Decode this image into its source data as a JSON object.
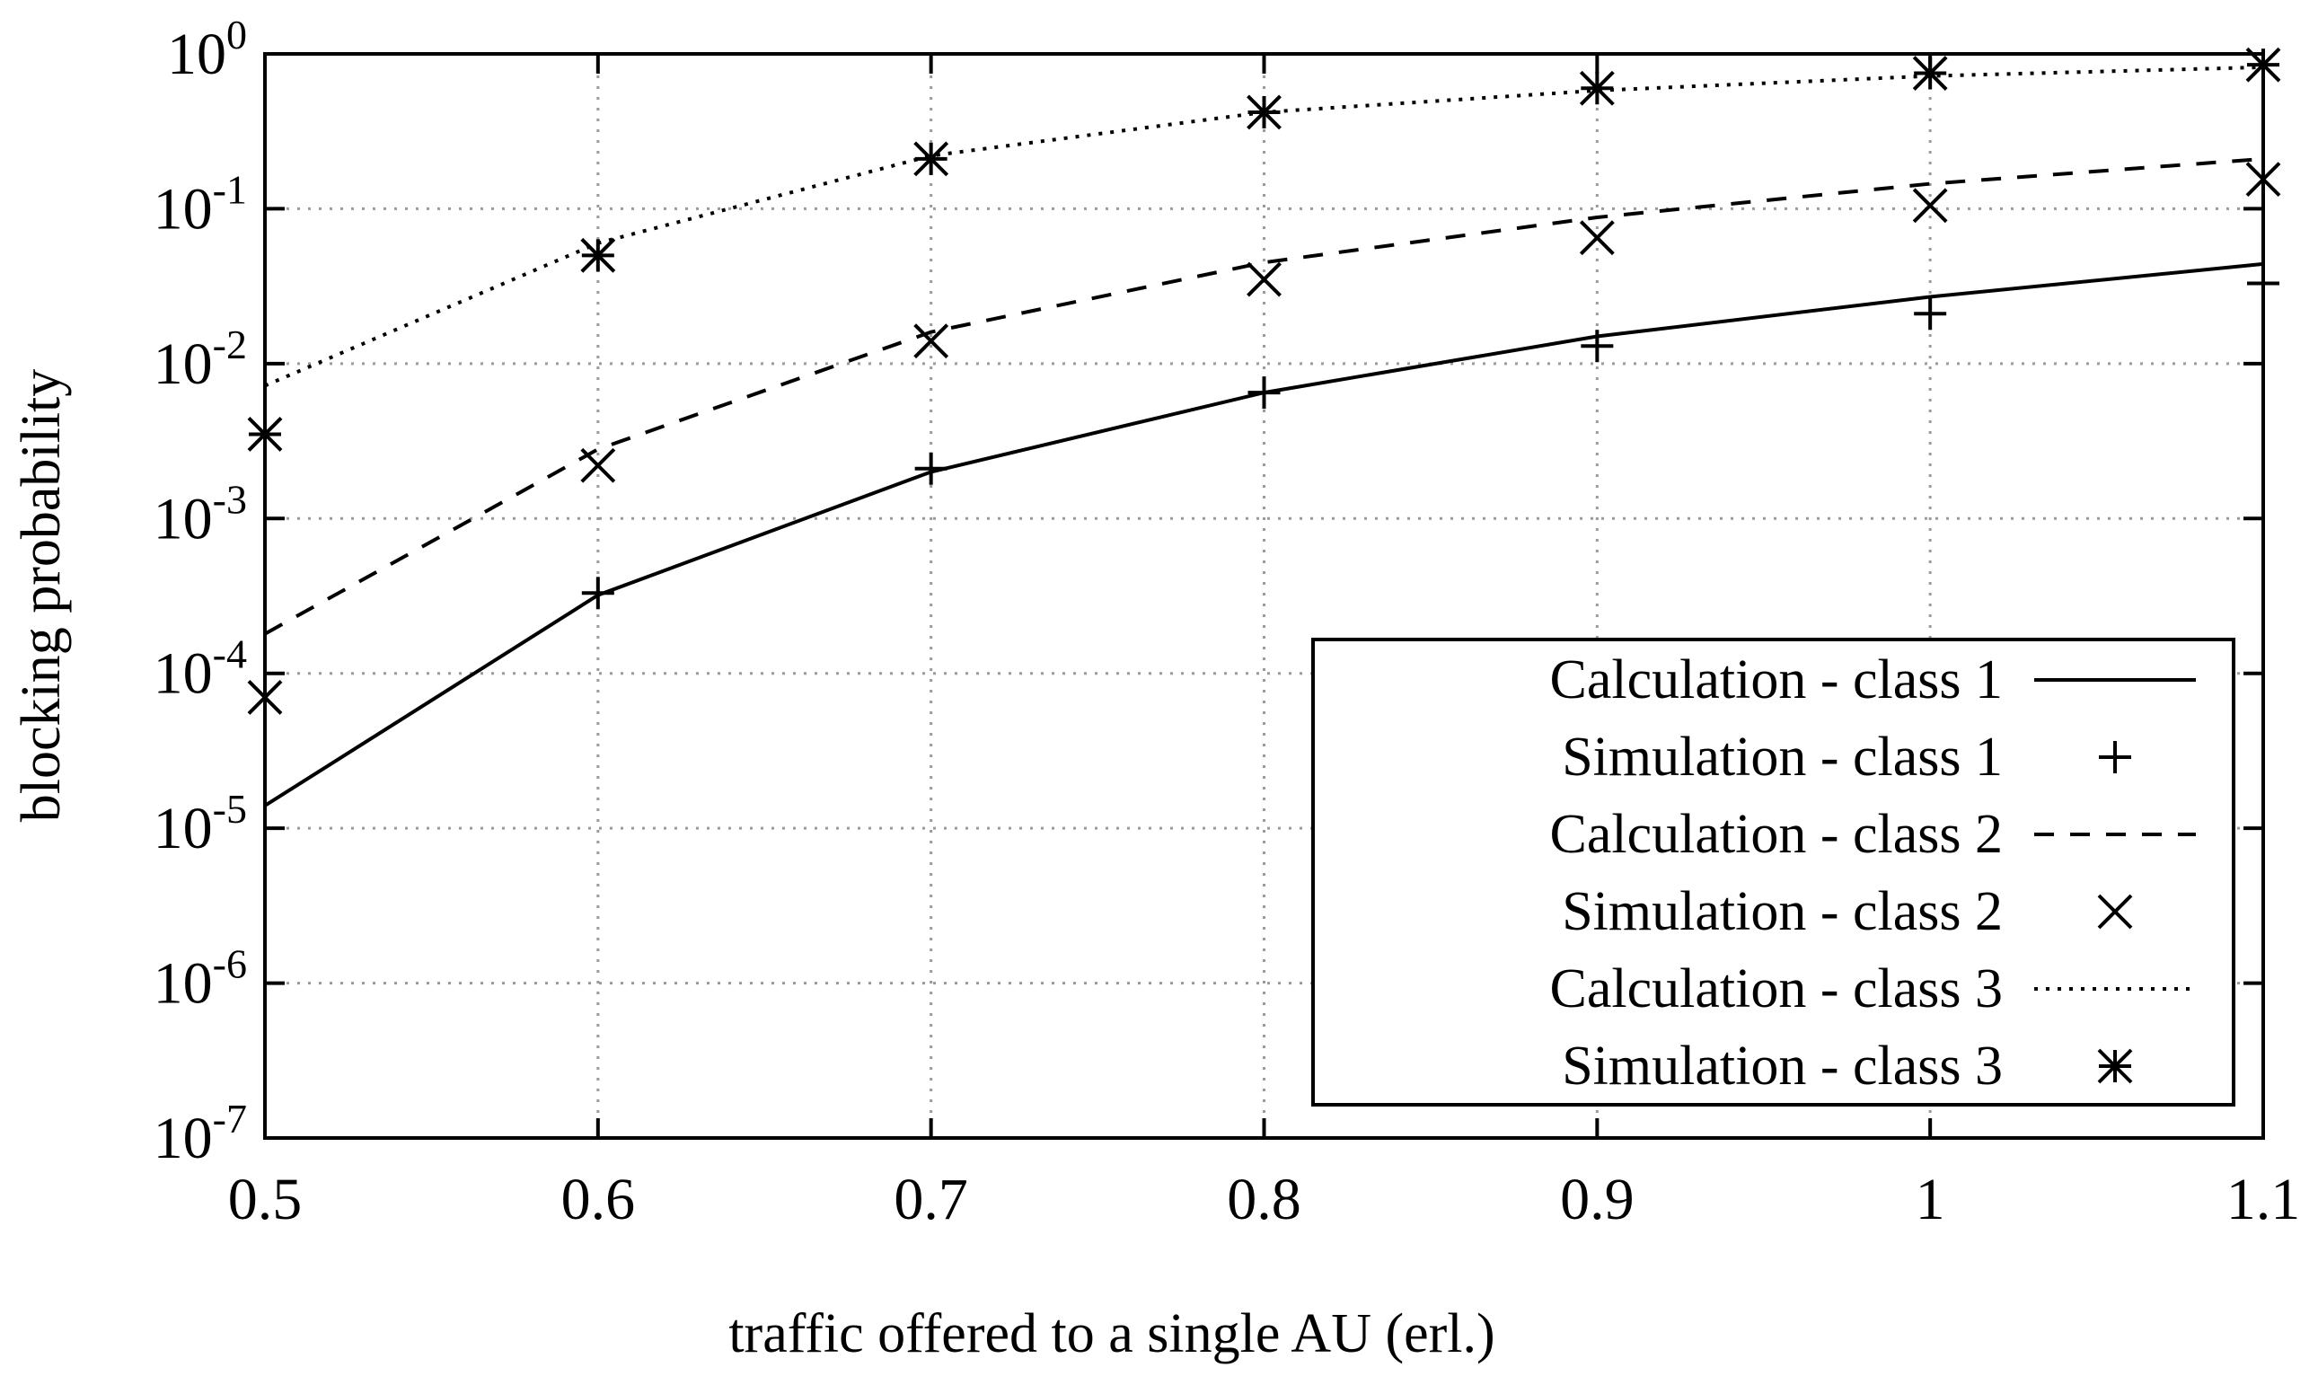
{
  "chart_data": {
    "type": "line",
    "title": "",
    "xlabel": "traffic offered to a single AU (erl.)",
    "ylabel": "blocking probability",
    "yscale": "log",
    "xlim": [
      0.5,
      1.1
    ],
    "ylim_exponents": [
      -7,
      0
    ],
    "x_ticks": [
      "0.5",
      "0.6",
      "0.7",
      "0.8",
      "0.9",
      "1",
      "1.1"
    ],
    "y_ticks": [
      {
        "base": "10",
        "exp": "0"
      },
      {
        "base": "10",
        "exp": "-1"
      },
      {
        "base": "10",
        "exp": "-2"
      },
      {
        "base": "10",
        "exp": "-3"
      },
      {
        "base": "10",
        "exp": "-4"
      },
      {
        "base": "10",
        "exp": "-5"
      },
      {
        "base": "10",
        "exp": "-6"
      },
      {
        "base": "10",
        "exp": "-7"
      }
    ],
    "grid": true,
    "legend_position": "bottom-right",
    "x": [
      0.5,
      0.6,
      0.7,
      0.8,
      0.9,
      1.0,
      1.1
    ],
    "series": [
      {
        "name": "Calculation - class 1",
        "kind": "line",
        "style": "solid",
        "values": [
          1.4e-05,
          0.00032,
          0.002,
          0.0065,
          0.015,
          0.027,
          0.044
        ]
      },
      {
        "name": "Simulation - class 1",
        "kind": "marker",
        "marker": "plus",
        "values": [
          null,
          0.00033,
          0.0021,
          0.0065,
          0.013,
          0.021,
          0.033
        ]
      },
      {
        "name": "Calculation - class 2",
        "kind": "line",
        "style": "dashed",
        "values": [
          0.00018,
          0.0028,
          0.016,
          0.045,
          0.088,
          0.145,
          0.21
        ]
      },
      {
        "name": "Simulation - class 2",
        "kind": "marker",
        "marker": "cross",
        "values": [
          7e-05,
          0.0022,
          0.014,
          0.035,
          0.065,
          0.105,
          0.155
        ]
      },
      {
        "name": "Calculation - class 3",
        "kind": "line",
        "style": "dotted",
        "values": [
          0.0072,
          0.06,
          0.22,
          0.42,
          0.58,
          0.72,
          0.82
        ]
      },
      {
        "name": "Simulation - class 3",
        "kind": "marker",
        "marker": "star",
        "values": [
          0.0035,
          0.05,
          0.21,
          0.42,
          0.6,
          0.75,
          0.85
        ]
      }
    ]
  }
}
